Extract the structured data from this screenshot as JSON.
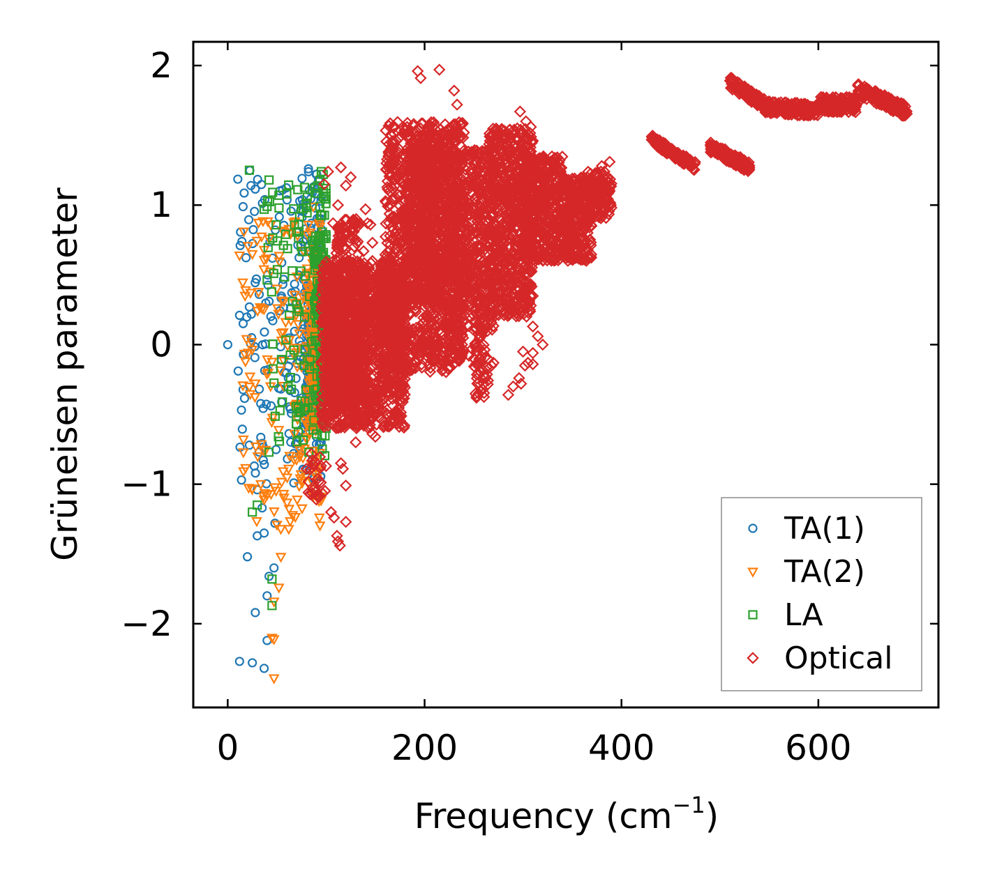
{
  "chart_data": {
    "type": "scatter",
    "title": "",
    "xlabel": "Frequency (cm",
    "xlabel_sup": "−1",
    "xlabel_close": ")",
    "ylabel": "Grüneisen parameter",
    "xlim": [
      -35,
      722
    ],
    "ylim": [
      -2.6,
      2.17
    ],
    "xticks": [
      0,
      200,
      400,
      600
    ],
    "xtick_labels": [
      "0",
      "200",
      "400",
      "600"
    ],
    "yticks": [
      -2,
      -1,
      0,
      1,
      2
    ],
    "ytick_labels": [
      "−2",
      "−1",
      "0",
      "1",
      "2"
    ],
    "legend_position": "lower-right",
    "series": [
      {
        "name": "TA(1)",
        "label": "TA(1)",
        "marker": "circle",
        "color": "#1f77b4",
        "regions": [
          {
            "x": [
              10,
              95
            ],
            "y": [
              -1.0,
              1.25
            ],
            "n": 240,
            "skew": 0.6
          },
          {
            "x": [
              80,
              95
            ],
            "y": [
              -0.6,
              0.4
            ],
            "n": 200,
            "skew": 1
          }
        ],
        "points": [
          [
            0,
            0.0
          ],
          [
            12,
            -2.27
          ],
          [
            25,
            -2.28
          ],
          [
            37,
            -2.32
          ],
          [
            40,
            -2.12
          ],
          [
            28,
            -1.92
          ],
          [
            20,
            -1.52
          ],
          [
            30,
            -1.37
          ],
          [
            37,
            -1.35
          ],
          [
            42,
            -1.66
          ],
          [
            47,
            -1.6
          ],
          [
            40,
            -1.8
          ],
          [
            14,
            -0.97
          ],
          [
            22,
            -0.72
          ],
          [
            27,
            -0.87
          ],
          [
            30,
            -1.04
          ],
          [
            48,
            -1.28
          ],
          [
            35,
            -1.17
          ],
          [
            12,
            0.21
          ],
          [
            22,
            0.27
          ],
          [
            32,
            0.36
          ],
          [
            42,
            0.31
          ],
          [
            82,
            1.26
          ],
          [
            90,
            1.22
          ],
          [
            87,
            1.13
          ],
          [
            77,
            1.01
          ],
          [
            85,
            0.87
          ]
        ]
      },
      {
        "name": "TA(2)",
        "label": "TA(2)",
        "marker": "triangle-down",
        "color": "#ff7f0e",
        "regions": [
          {
            "x": [
              15,
              95
            ],
            "y": [
              -1.3,
              0.9
            ],
            "n": 220,
            "skew": 0.6
          },
          {
            "x": [
              80,
              95
            ],
            "y": [
              -0.6,
              0.6
            ],
            "n": 120,
            "skew": 1
          }
        ],
        "points": [
          [
            47,
            -2.39
          ],
          [
            47,
            -2.11
          ],
          [
            45,
            -2.1
          ],
          [
            47,
            -1.84
          ],
          [
            52,
            -1.74
          ],
          [
            54,
            -1.52
          ],
          [
            50,
            -1.29
          ],
          [
            54,
            -1.32
          ],
          [
            62,
            -1.32
          ],
          [
            25,
            -1.03
          ],
          [
            37,
            -1.11
          ],
          [
            44,
            -1.07
          ],
          [
            12,
            0.64
          ],
          [
            25,
            0.65
          ],
          [
            37,
            0.68
          ],
          [
            42,
            0.76
          ],
          [
            57,
            0.81
          ],
          [
            62,
            0.83
          ],
          [
            87,
            0.99
          ],
          [
            82,
            0.86
          ],
          [
            18,
            -0.12
          ],
          [
            22,
            -0.3
          ]
        ]
      },
      {
        "name": "LA",
        "label": "LA",
        "marker": "square",
        "color": "#2ca02c",
        "regions": [
          {
            "x": [
              40,
              100
            ],
            "y": [
              -0.8,
              1.2
            ],
            "n": 170,
            "skew": 0.7
          },
          {
            "x": [
              88,
              100
            ],
            "y": [
              -0.4,
              0.8
            ],
            "n": 90,
            "skew": 1
          }
        ],
        "points": [
          [
            22,
            1.25
          ],
          [
            42,
            1.18
          ],
          [
            52,
            1.07
          ],
          [
            60,
            1.08
          ],
          [
            37,
            0.97
          ],
          [
            40,
            0.99
          ],
          [
            45,
            -1.68
          ],
          [
            45,
            -1.87
          ],
          [
            25,
            -1.2
          ],
          [
            30,
            -1.15
          ],
          [
            97,
            1.22
          ],
          [
            95,
            1.24
          ]
        ]
      },
      {
        "name": "Optical",
        "label": "Optical",
        "marker": "diamond",
        "color": "#d62728",
        "regions": [
          {
            "x": [
              95,
              180
            ],
            "y": [
              -0.6,
              0.6
            ],
            "n": 1200,
            "skew": 1
          },
          {
            "x": [
              100,
              140
            ],
            "y": [
              -0.5,
              0.5
            ],
            "n": 400,
            "skew": 1
          },
          {
            "x": [
              160,
              240
            ],
            "y": [
              -0.2,
              1.6
            ],
            "n": 1100,
            "skew": 1
          },
          {
            "x": [
              180,
              220
            ],
            "y": [
              0.3,
              1.5
            ],
            "n": 500,
            "skew": 1
          },
          {
            "x": [
              220,
              270
            ],
            "y": [
              0.1,
              1.4
            ],
            "n": 650,
            "skew": 1
          },
          {
            "x": [
              265,
              310
            ],
            "y": [
              0.2,
              1.55
            ],
            "n": 700,
            "skew": 1
          },
          {
            "x": [
              300,
              340
            ],
            "y": [
              0.6,
              1.35
            ],
            "n": 450,
            "skew": 1
          },
          {
            "x": [
              340,
              370
            ],
            "y": [
              0.6,
              1.2
            ],
            "n": 320,
            "skew": 1
          },
          {
            "x": [
              365,
              390
            ],
            "y": [
              0.9,
              1.25
            ],
            "n": 120,
            "skew": 1
          },
          {
            "x": [
              250,
              265
            ],
            "y": [
              -0.4,
              0.1
            ],
            "n": 50,
            "skew": 1
          },
          {
            "x": [
              110,
              135
            ],
            "y": [
              0.5,
              0.9
            ],
            "n": 80,
            "skew": 1
          },
          {
            "x": [
              150,
              175
            ],
            "y": [
              0.0,
              0.5
            ],
            "n": 180,
            "skew": 1
          },
          {
            "x": [
              80,
              100
            ],
            "y": [
              -1.1,
              -0.7
            ],
            "n": 25,
            "skew": 1
          }
        ],
        "bands": [
          {
            "x": [
              430,
              475
            ],
            "y_start": 1.47,
            "y_end": 1.28,
            "width": 0.07,
            "n": 120
          },
          {
            "x": [
              490,
              530
            ],
            "y_start": 1.42,
            "y_end": 1.27,
            "width": 0.08,
            "n": 120
          },
          {
            "x": [
              510,
              545
            ],
            "y_start": 1.88,
            "y_end": 1.72,
            "width": 0.08,
            "n": 120
          },
          {
            "x": [
              545,
              600
            ],
            "y_start": 1.7,
            "y_end": 1.68,
            "width": 0.09,
            "n": 180
          },
          {
            "x": [
              600,
              640
            ],
            "y_start": 1.72,
            "y_end": 1.72,
            "width": 0.11,
            "n": 150
          },
          {
            "x": [
              640,
              690
            ],
            "y_start": 1.83,
            "y_end": 1.67,
            "width": 0.09,
            "n": 170
          }
        ],
        "points": [
          [
            193,
            1.96
          ],
          [
            196,
            1.91
          ],
          [
            215,
            1.97
          ],
          [
            230,
            1.82
          ],
          [
            233,
            1.72
          ],
          [
            237,
            1.57
          ],
          [
            240,
            1.52
          ],
          [
            250,
            1.38
          ],
          [
            258,
            1.35
          ],
          [
            272,
            1.36
          ],
          [
            297,
            1.67
          ],
          [
            303,
            1.6
          ],
          [
            308,
            1.56
          ],
          [
            310,
            1.46
          ],
          [
            196,
            1.31
          ],
          [
            140,
            0.97
          ],
          [
            142,
            0.87
          ],
          [
            145,
            0.86
          ],
          [
            147,
            0.73
          ],
          [
            138,
            0.67
          ],
          [
            143,
            0.56
          ],
          [
            155,
            0.53
          ],
          [
            107,
            0.87
          ],
          [
            112,
            1.0
          ],
          [
            120,
            1.14
          ],
          [
            125,
            1.2
          ],
          [
            115,
            1.27
          ],
          [
            98,
            1.15
          ],
          [
            102,
            1.24
          ],
          [
            145,
            0.47
          ],
          [
            147,
            -0.64
          ],
          [
            150,
            -0.66
          ],
          [
            130,
            -0.7
          ],
          [
            115,
            -0.85
          ],
          [
            117,
            -0.89
          ],
          [
            120,
            -1.01
          ],
          [
            105,
            -1.2
          ],
          [
            108,
            -1.24
          ],
          [
            111,
            -1.37
          ],
          [
            112,
            -1.41
          ],
          [
            114,
            -1.44
          ],
          [
            120,
            -1.27
          ],
          [
            90,
            -1.11
          ],
          [
            82,
            -1.06
          ],
          [
            80,
            -0.89
          ],
          [
            86,
            -0.83
          ],
          [
            285,
            -0.36
          ],
          [
            290,
            -0.3
          ],
          [
            296,
            -0.24
          ],
          [
            298,
            -0.28
          ],
          [
            302,
            -0.15
          ],
          [
            305,
            -0.13
          ],
          [
            310,
            -0.14
          ],
          [
            253,
            -0.37
          ],
          [
            255,
            -0.35
          ],
          [
            260,
            -0.28
          ],
          [
            262,
            -0.24
          ],
          [
            265,
            -0.17
          ],
          [
            268,
            -0.15
          ],
          [
            270,
            -0.13
          ],
          [
            300,
            -0.05
          ],
          [
            208,
            -0.03
          ],
          [
            205,
            0.0
          ],
          [
            245,
            -0.08
          ],
          [
            248,
            -0.03
          ],
          [
            250,
            -0.1
          ],
          [
            310,
            -0.06
          ],
          [
            310,
            0.13
          ],
          [
            308,
            0.28
          ],
          [
            315,
            0.06
          ],
          [
            320,
            0.0
          ],
          [
            380,
            1.28
          ],
          [
            388,
            1.31
          ],
          [
            386,
            1.2
          ],
          [
            376,
            1.2
          ]
        ]
      }
    ]
  }
}
